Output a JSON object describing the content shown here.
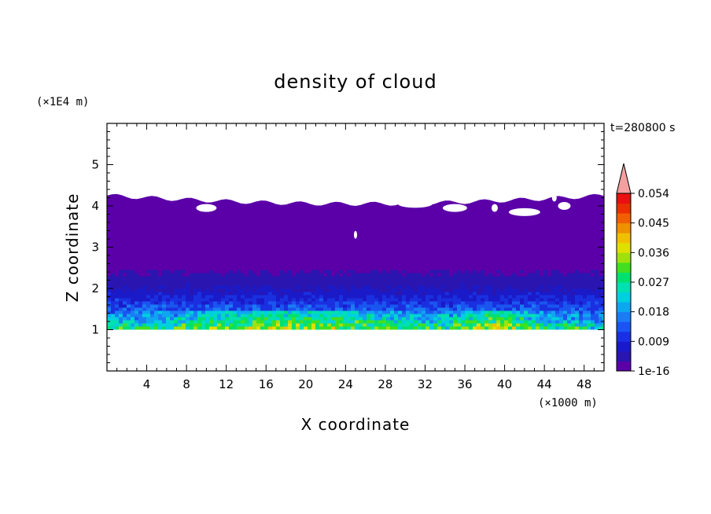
{
  "chart_data": {
    "type": "heatmap",
    "title": "density of cloud",
    "xlabel": "X coordinate",
    "ylabel": "Z coordinate",
    "x_unit": "(×1000 m)",
    "y_unit": "(×1E4 m)",
    "time_label": "t=280800 s",
    "xlim": [
      0,
      50
    ],
    "ylim": [
      0,
      6
    ],
    "x_ticks": [
      4,
      8,
      12,
      16,
      20,
      24,
      28,
      32,
      36,
      40,
      44,
      48
    ],
    "y_ticks": [
      1,
      2,
      3,
      4,
      5
    ],
    "colorbar": {
      "labels": [
        "1e-16",
        "0.009",
        "0.018",
        "0.027",
        "0.036",
        "0.045",
        "0.054"
      ],
      "colors": [
        "#5b00a8",
        "#2a15b0",
        "#1a1ac8",
        "#1a30e0",
        "#1a55f0",
        "#1a7cf5",
        "#10a5f0",
        "#00cfe0",
        "#00e0b0",
        "#00e070",
        "#40e020",
        "#a0e010",
        "#e0e000",
        "#f0c000",
        "#f09000",
        "#f06000",
        "#e83000",
        "#e81010"
      ],
      "overflow_color": "#f4a0a0"
    },
    "cloud_layer": {
      "base_z": 1.0,
      "top_z": 4.4
    }
  }
}
